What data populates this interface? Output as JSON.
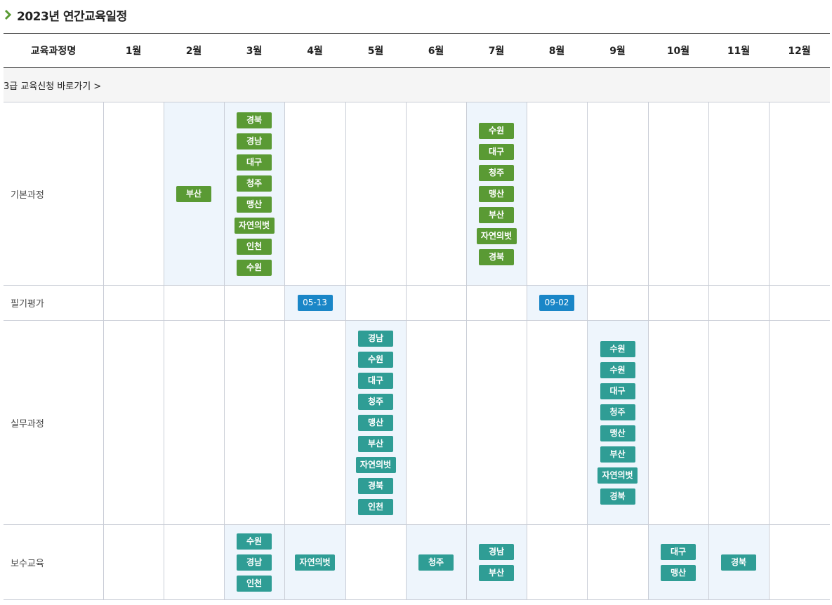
{
  "title": "2023년 연간교육일정",
  "headers": [
    "교육과정명",
    "1월",
    "2월",
    "3월",
    "4월",
    "5월",
    "6월",
    "7월",
    "8월",
    "9월",
    "10월",
    "11월",
    "12월"
  ],
  "apply_link": "3급 교육신청 바로가기 >",
  "rows": {
    "basic": {
      "label": "기본과정",
      "feb": [
        "부산"
      ],
      "mar": [
        "경북",
        "경남",
        "대구",
        "청주",
        "맹산",
        "자연의벗",
        "인천",
        "수원"
      ],
      "jul": [
        "수원",
        "대구",
        "청주",
        "맹산",
        "부산",
        "자연의벗",
        "경북"
      ]
    },
    "written": {
      "label": "필기평가",
      "apr": [
        "05-13"
      ],
      "aug": [
        "09-02"
      ]
    },
    "practical": {
      "label": "실무과정",
      "may": [
        "경남",
        "수원",
        "대구",
        "청주",
        "맹산",
        "부산",
        "자연의벗",
        "경북",
        "인천"
      ],
      "sep": [
        "수원",
        "수원",
        "대구",
        "청주",
        "맹산",
        "부산",
        "자연의벗",
        "경북"
      ]
    },
    "refresher": {
      "label": "보수교육",
      "mar": [
        "수원",
        "경남",
        "인천"
      ],
      "apr": [
        "자연의벗"
      ],
      "jun": [
        "청주"
      ],
      "jul": [
        "경남",
        "부산"
      ],
      "oct": [
        "대구",
        "맹산"
      ],
      "nov": [
        "경북"
      ]
    }
  },
  "colors": {
    "green": "#5a9a34",
    "teal": "#2f9d95",
    "blue": "#1a86c7",
    "highlight": "#eef5fc"
  }
}
